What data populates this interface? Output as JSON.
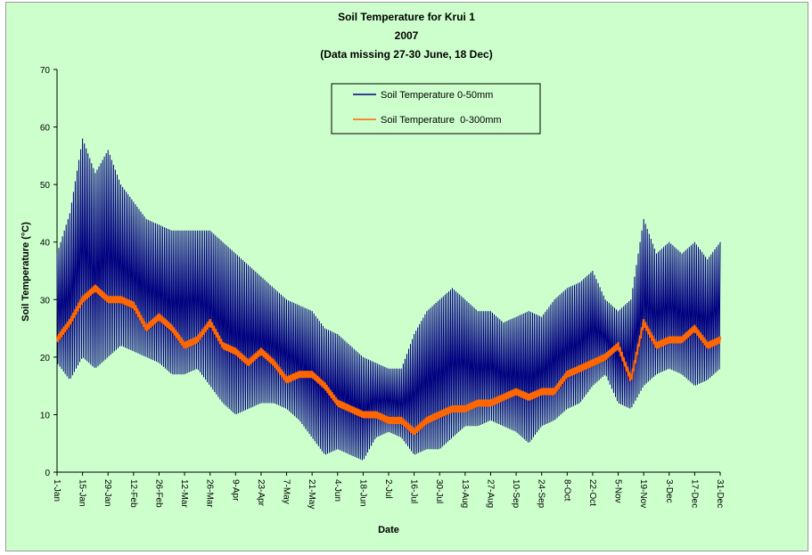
{
  "chart_data": {
    "type": "line",
    "title": [
      "Soil Temperature for Krui 1",
      "2007",
      "(Data missing 27-30 June, 18 Dec)"
    ],
    "xlabel": "Date",
    "ylabel": "Soil Temperature (°C)",
    "ylim": [
      0,
      70
    ],
    "yticks": [
      0,
      10,
      20,
      30,
      40,
      50,
      60,
      70
    ],
    "xrange_days": [
      1,
      365
    ],
    "xtick_labels": [
      "1-Jan",
      "15-Jan",
      "29-Jan",
      "12-Feb",
      "26-Feb",
      "12-Mar",
      "26-Mar",
      "9-Apr",
      "23-Apr",
      "7-May",
      "21-May",
      "4-Jun",
      "18-Jun",
      "2-Jul",
      "16-Jul",
      "30-Jul",
      "13-Aug",
      "27-Aug",
      "10-Sep",
      "24-Sep",
      "8-Oct",
      "22-Oct",
      "5-Nov",
      "19-Nov",
      "3-Dec",
      "17-Dec",
      "31-Dec"
    ],
    "xtick_days": [
      1,
      15,
      29,
      43,
      57,
      71,
      85,
      99,
      113,
      127,
      141,
      155,
      169,
      183,
      197,
      211,
      225,
      239,
      253,
      267,
      281,
      295,
      309,
      323,
      337,
      351,
      365
    ],
    "legend_position": "top-center",
    "series": [
      {
        "name": "Soil Temperature 0-50mm",
        "color": "#000080",
        "days": [
          1,
          8,
          15,
          22,
          29,
          36,
          43,
          50,
          57,
          64,
          71,
          78,
          85,
          92,
          99,
          106,
          113,
          120,
          127,
          134,
          141,
          148,
          155,
          162,
          169,
          176,
          183,
          190,
          197,
          204,
          211,
          218,
          225,
          232,
          239,
          246,
          253,
          260,
          267,
          274,
          281,
          288,
          295,
          302,
          309,
          316,
          323,
          330,
          337,
          344,
          351,
          358,
          365
        ],
        "daily_min": [
          19,
          16,
          20,
          18,
          20,
          22,
          21,
          20,
          19,
          17,
          17,
          18,
          15,
          12,
          10,
          11,
          12,
          12,
          11,
          9,
          6,
          3,
          4,
          3,
          2,
          6,
          7,
          6,
          3,
          4,
          4,
          6,
          8,
          8,
          9,
          8,
          7,
          5,
          8,
          9,
          11,
          12,
          15,
          17,
          12,
          11,
          15,
          17,
          18,
          17,
          15,
          16,
          18
        ],
        "daily_max": [
          38,
          45,
          58,
          52,
          56,
          50,
          47,
          44,
          43,
          42,
          42,
          42,
          42,
          40,
          38,
          36,
          34,
          32,
          30,
          29,
          28,
          25,
          24,
          22,
          20,
          19,
          18,
          18,
          24,
          28,
          30,
          32,
          30,
          28,
          28,
          26,
          27,
          28,
          27,
          30,
          32,
          33,
          35,
          30,
          28,
          30,
          44,
          38,
          40,
          38,
          40,
          37,
          40
        ]
      },
      {
        "name": "Soil Temperature  0-300mm",
        "color": "#ff6600",
        "days": [
          1,
          8,
          15,
          22,
          29,
          36,
          43,
          50,
          57,
          64,
          71,
          78,
          85,
          92,
          99,
          106,
          113,
          120,
          127,
          134,
          141,
          148,
          155,
          162,
          169,
          176,
          183,
          190,
          197,
          204,
          211,
          218,
          225,
          232,
          239,
          246,
          253,
          260,
          267,
          274,
          281,
          288,
          295,
          302,
          309,
          316,
          323,
          330,
          337,
          344,
          351,
          358,
          365
        ],
        "values": [
          23,
          26,
          30,
          32,
          30,
          30,
          29,
          25,
          27,
          25,
          22,
          23,
          26,
          22,
          21,
          19,
          21,
          19,
          16,
          17,
          17,
          15,
          12,
          11,
          10,
          10,
          9,
          9,
          7,
          9,
          10,
          11,
          11,
          12,
          12,
          13,
          14,
          13,
          14,
          14,
          17,
          18,
          19,
          20,
          22,
          16,
          26,
          22,
          23,
          23,
          25,
          22,
          23
        ]
      }
    ]
  }
}
